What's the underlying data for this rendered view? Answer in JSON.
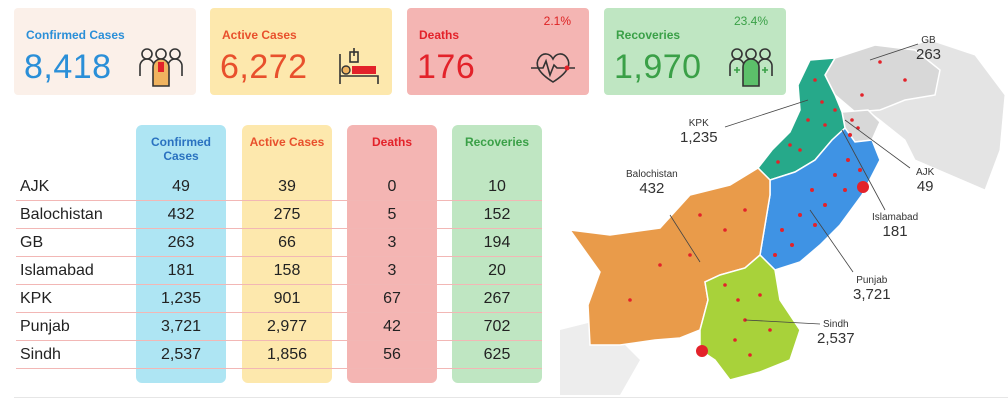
{
  "summary": {
    "confirmed": {
      "label": "Confirmed Cases",
      "value": "8,418",
      "icon": "people-group-icon"
    },
    "active": {
      "label": "Active Cases",
      "value": "6,272",
      "icon": "hospital-bed-icon"
    },
    "deaths": {
      "label": "Deaths",
      "value": "176",
      "pct": "2.1%",
      "icon": "heartbeat-icon"
    },
    "recoveries": {
      "label": "Recoveries",
      "value": "1,970",
      "pct": "23.4%",
      "icon": "recovered-people-icon"
    }
  },
  "table": {
    "headers": {
      "confirmed": "Confirmed Cases",
      "active": "Active Cases",
      "deaths": "Deaths",
      "recoveries": "Recoveries"
    },
    "rows": [
      {
        "region": "AJK",
        "confirmed": "49",
        "active": "39",
        "deaths": "0",
        "recoveries": "10"
      },
      {
        "region": "Balochistan",
        "confirmed": "432",
        "active": "275",
        "deaths": "5",
        "recoveries": "152"
      },
      {
        "region": "GB",
        "confirmed": "263",
        "active": "66",
        "deaths": "3",
        "recoveries": "194"
      },
      {
        "region": "Islamabad",
        "confirmed": "181",
        "active": "158",
        "deaths": "3",
        "recoveries": "20"
      },
      {
        "region": "KPK",
        "confirmed": "1,235",
        "active": "901",
        "deaths": "67",
        "recoveries": "267"
      },
      {
        "region": "Punjab",
        "confirmed": "3,721",
        "active": "2,977",
        "deaths": "42",
        "recoveries": "702"
      },
      {
        "region": "Sindh",
        "confirmed": "2,537",
        "active": "1,856",
        "deaths": "56",
        "recoveries": "625"
      }
    ]
  },
  "map": {
    "labels": {
      "gb": {
        "name": "GB",
        "value": "263"
      },
      "kpk": {
        "name": "KPK",
        "value": "1,235"
      },
      "balochistan": {
        "name": "Balochistan",
        "value": "432"
      },
      "ajk": {
        "name": "AJK",
        "value": "49"
      },
      "islamabad": {
        "name": "Islamabad",
        "value": "181"
      },
      "punjab": {
        "name": "Punjab",
        "value": "3,721"
      },
      "sindh": {
        "name": "Sindh",
        "value": "2,537"
      }
    },
    "colors": {
      "balochistan": "#e99b4a",
      "sindh": "#a8d23a",
      "punjab": "#3f93e4",
      "kpk": "#26a98a",
      "gb": "#d8d8d8",
      "ajk": "#d8d8d8",
      "marker": "#e3222a"
    }
  }
}
